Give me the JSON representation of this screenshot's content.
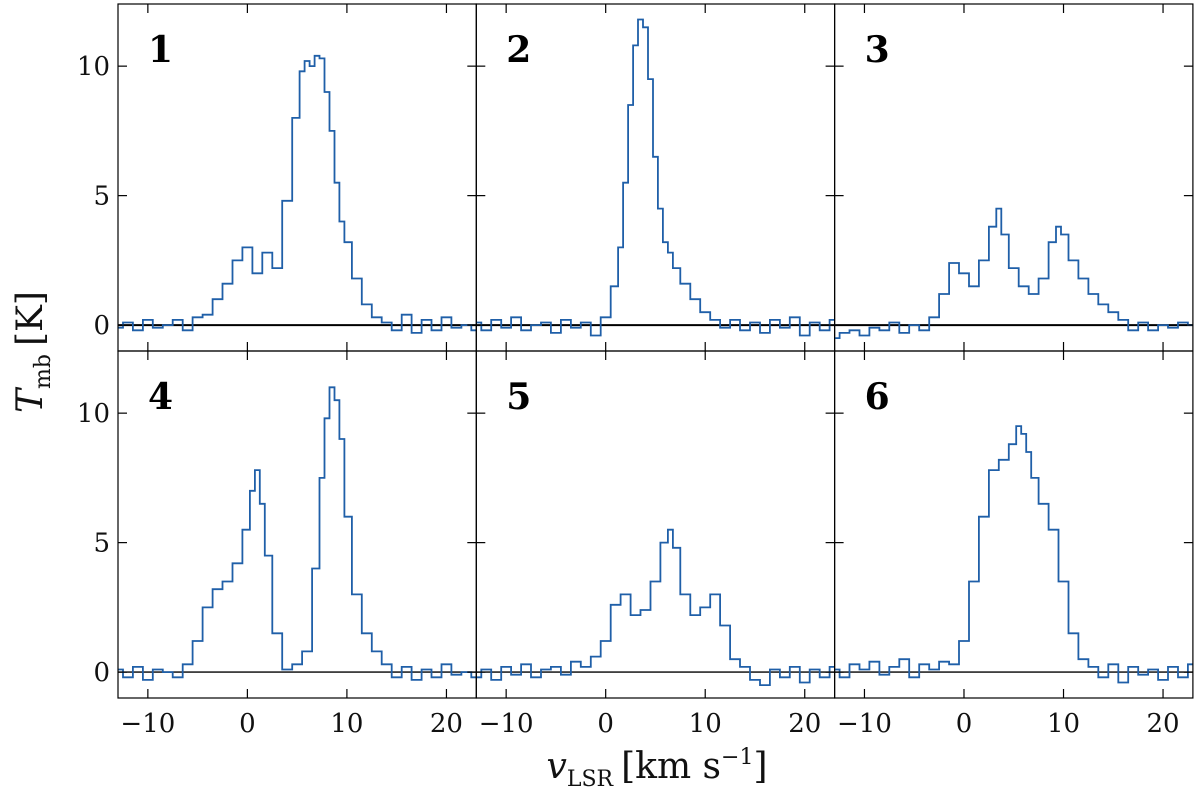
{
  "colors": {
    "spectrum": "#1f5fa8",
    "axis": "#000000",
    "zero_line": "#000000"
  },
  "labels": {
    "ylabel_main": "T",
    "ylabel_sub": "mb",
    "ylabel_unit": "[K]",
    "xlabel_main": "v",
    "xlabel_sub": "LSR",
    "xlabel_unit": "[km s",
    "xlabel_unit_exp": "−1",
    "xlabel_unit_close": "]"
  },
  "chart_data": {
    "type": "line",
    "style": "step",
    "layout": "2x3 grid, shared axes",
    "xlim": [
      -13,
      23
    ],
    "ylim": [
      -1,
      12.4
    ],
    "xticks": [
      -10,
      0,
      10,
      20
    ],
    "xtick_labels": [
      "−10",
      "0",
      "10",
      "20"
    ],
    "yticks": [
      0,
      5,
      10
    ],
    "ytick_labels": [
      "0",
      "5",
      "10"
    ],
    "grid": false,
    "panels": [
      {
        "label": "1",
        "velocity": [
          -13,
          -12,
          -11,
          -10,
          -9,
          -8,
          -7,
          -6,
          -5,
          -4,
          -3,
          -2,
          -1,
          0,
          1,
          2,
          3,
          4,
          5,
          5.5,
          6,
          6.5,
          7,
          7.5,
          8,
          8.5,
          9,
          9.5,
          10,
          11,
          12,
          13,
          14,
          15,
          16,
          17,
          18,
          19,
          20,
          21,
          22,
          23
        ],
        "tmb": [
          -0.1,
          0.1,
          -0.2,
          0.2,
          -0.1,
          0.0,
          0.2,
          -0.2,
          0.3,
          0.4,
          1.0,
          1.6,
          2.5,
          3.0,
          2.0,
          2.8,
          2.2,
          4.8,
          8.0,
          9.8,
          10.2,
          10.0,
          10.4,
          10.3,
          9.0,
          7.5,
          5.5,
          4.0,
          3.2,
          1.8,
          0.8,
          0.3,
          0.1,
          -0.2,
          0.4,
          -0.3,
          0.2,
          -0.2,
          0.3,
          -0.1,
          0.0,
          -0.2
        ]
      },
      {
        "label": "2",
        "velocity": [
          -13,
          -12,
          -11,
          -10,
          -9,
          -8,
          -7,
          -6,
          -5,
          -4,
          -3,
          -2,
          -1,
          0,
          1,
          1.5,
          2,
          2.5,
          3,
          3.5,
          4,
          4.5,
          5,
          5.5,
          6,
          6.5,
          7,
          8,
          9,
          10,
          11,
          12,
          13,
          14,
          15,
          16,
          17,
          18,
          19,
          20,
          21,
          22,
          23
        ],
        "tmb": [
          0.1,
          -0.2,
          0.2,
          -0.1,
          0.3,
          -0.2,
          0.0,
          0.1,
          -0.3,
          0.2,
          -0.1,
          0.1,
          -0.4,
          0.3,
          1.5,
          3.0,
          5.5,
          8.5,
          10.8,
          11.8,
          11.5,
          9.5,
          6.5,
          4.5,
          3.2,
          2.8,
          2.2,
          1.6,
          1.0,
          0.5,
          0.2,
          -0.1,
          0.2,
          -0.2,
          0.1,
          -0.3,
          0.2,
          -0.1,
          0.3,
          -0.4,
          0.1,
          -0.2,
          0.2
        ]
      },
      {
        "label": "3",
        "velocity": [
          -13,
          -12,
          -11,
          -10,
          -9,
          -8,
          -7,
          -6,
          -5,
          -4,
          -3,
          -2,
          -1,
          0,
          1,
          2,
          3,
          3.5,
          4,
          5,
          6,
          7,
          8,
          9,
          9.5,
          10,
          11,
          12,
          13,
          14,
          15,
          16,
          17,
          18,
          19,
          20,
          21,
          22,
          23
        ],
        "tmb": [
          -0.5,
          -0.3,
          -0.2,
          -0.4,
          -0.1,
          -0.2,
          0.1,
          -0.3,
          0.0,
          -0.2,
          0.3,
          1.2,
          2.4,
          2.0,
          1.5,
          2.5,
          3.8,
          4.5,
          3.5,
          2.2,
          1.5,
          1.2,
          1.8,
          3.2,
          3.8,
          3.5,
          2.5,
          1.8,
          1.2,
          0.8,
          0.5,
          0.2,
          -0.2,
          0.1,
          -0.2,
          0.0,
          -0.1,
          0.1,
          0.0
        ]
      },
      {
        "label": "4",
        "velocity": [
          -13,
          -12,
          -11,
          -10,
          -9,
          -8,
          -7,
          -6,
          -5,
          -4,
          -3,
          -2,
          -1,
          0,
          0.5,
          1,
          1.5,
          2,
          3,
          4,
          5,
          6,
          7,
          7.5,
          8,
          8.5,
          9,
          9.5,
          10,
          11,
          12,
          13,
          14,
          15,
          16,
          17,
          18,
          19,
          20,
          21,
          22,
          23
        ],
        "tmb": [
          0.1,
          -0.2,
          0.2,
          -0.3,
          0.1,
          0.0,
          -0.2,
          0.3,
          1.2,
          2.5,
          3.2,
          3.5,
          4.2,
          5.5,
          7.0,
          7.8,
          6.5,
          4.5,
          1.5,
          0.1,
          0.3,
          0.8,
          4.0,
          7.5,
          9.8,
          11.0,
          10.5,
          9.0,
          6.0,
          3.0,
          1.5,
          0.8,
          0.3,
          -0.2,
          0.2,
          -0.3,
          0.1,
          -0.2,
          0.3,
          -0.1,
          0.0,
          -0.2
        ]
      },
      {
        "label": "5",
        "velocity": [
          -13,
          -12,
          -11,
          -10,
          -9,
          -8,
          -7,
          -6,
          -5,
          -4,
          -3,
          -2,
          -1,
          0,
          1,
          2,
          3,
          4,
          5,
          6,
          6.5,
          7,
          8,
          9,
          10,
          11,
          12,
          13,
          14,
          15,
          16,
          17,
          18,
          19,
          20,
          21,
          22,
          23
        ],
        "tmb": [
          -0.2,
          0.1,
          -0.3,
          0.2,
          -0.1,
          0.3,
          -0.2,
          0.1,
          0.2,
          -0.1,
          0.4,
          0.2,
          0.6,
          1.2,
          2.6,
          3.0,
          2.2,
          2.4,
          3.5,
          5.0,
          5.5,
          4.8,
          3.0,
          2.2,
          2.5,
          3.0,
          1.8,
          0.5,
          0.2,
          -0.3,
          -0.5,
          0.1,
          -0.2,
          0.2,
          -0.4,
          0.1,
          -0.2,
          0.2
        ]
      },
      {
        "label": "6",
        "velocity": [
          -13,
          -12,
          -11,
          -10,
          -9,
          -8,
          -7,
          -6,
          -5,
          -4,
          -3,
          -2,
          -1,
          0,
          1,
          2,
          3,
          4,
          5,
          5.5,
          6,
          6.5,
          7,
          8,
          9,
          10,
          11,
          12,
          13,
          14,
          15,
          16,
          17,
          18,
          19,
          20,
          21,
          22,
          23
        ],
        "tmb": [
          0.1,
          -0.2,
          0.3,
          0.1,
          0.4,
          -0.1,
          0.2,
          0.5,
          -0.2,
          0.3,
          0.1,
          0.4,
          0.3,
          1.2,
          3.5,
          6.0,
          7.8,
          8.2,
          8.8,
          9.5,
          9.2,
          8.5,
          7.5,
          6.5,
          5.5,
          3.5,
          1.5,
          0.5,
          0.2,
          -0.2,
          0.3,
          -0.4,
          0.2,
          -0.1,
          0.1,
          -0.3,
          0.2,
          -0.2,
          0.3
        ]
      }
    ]
  }
}
